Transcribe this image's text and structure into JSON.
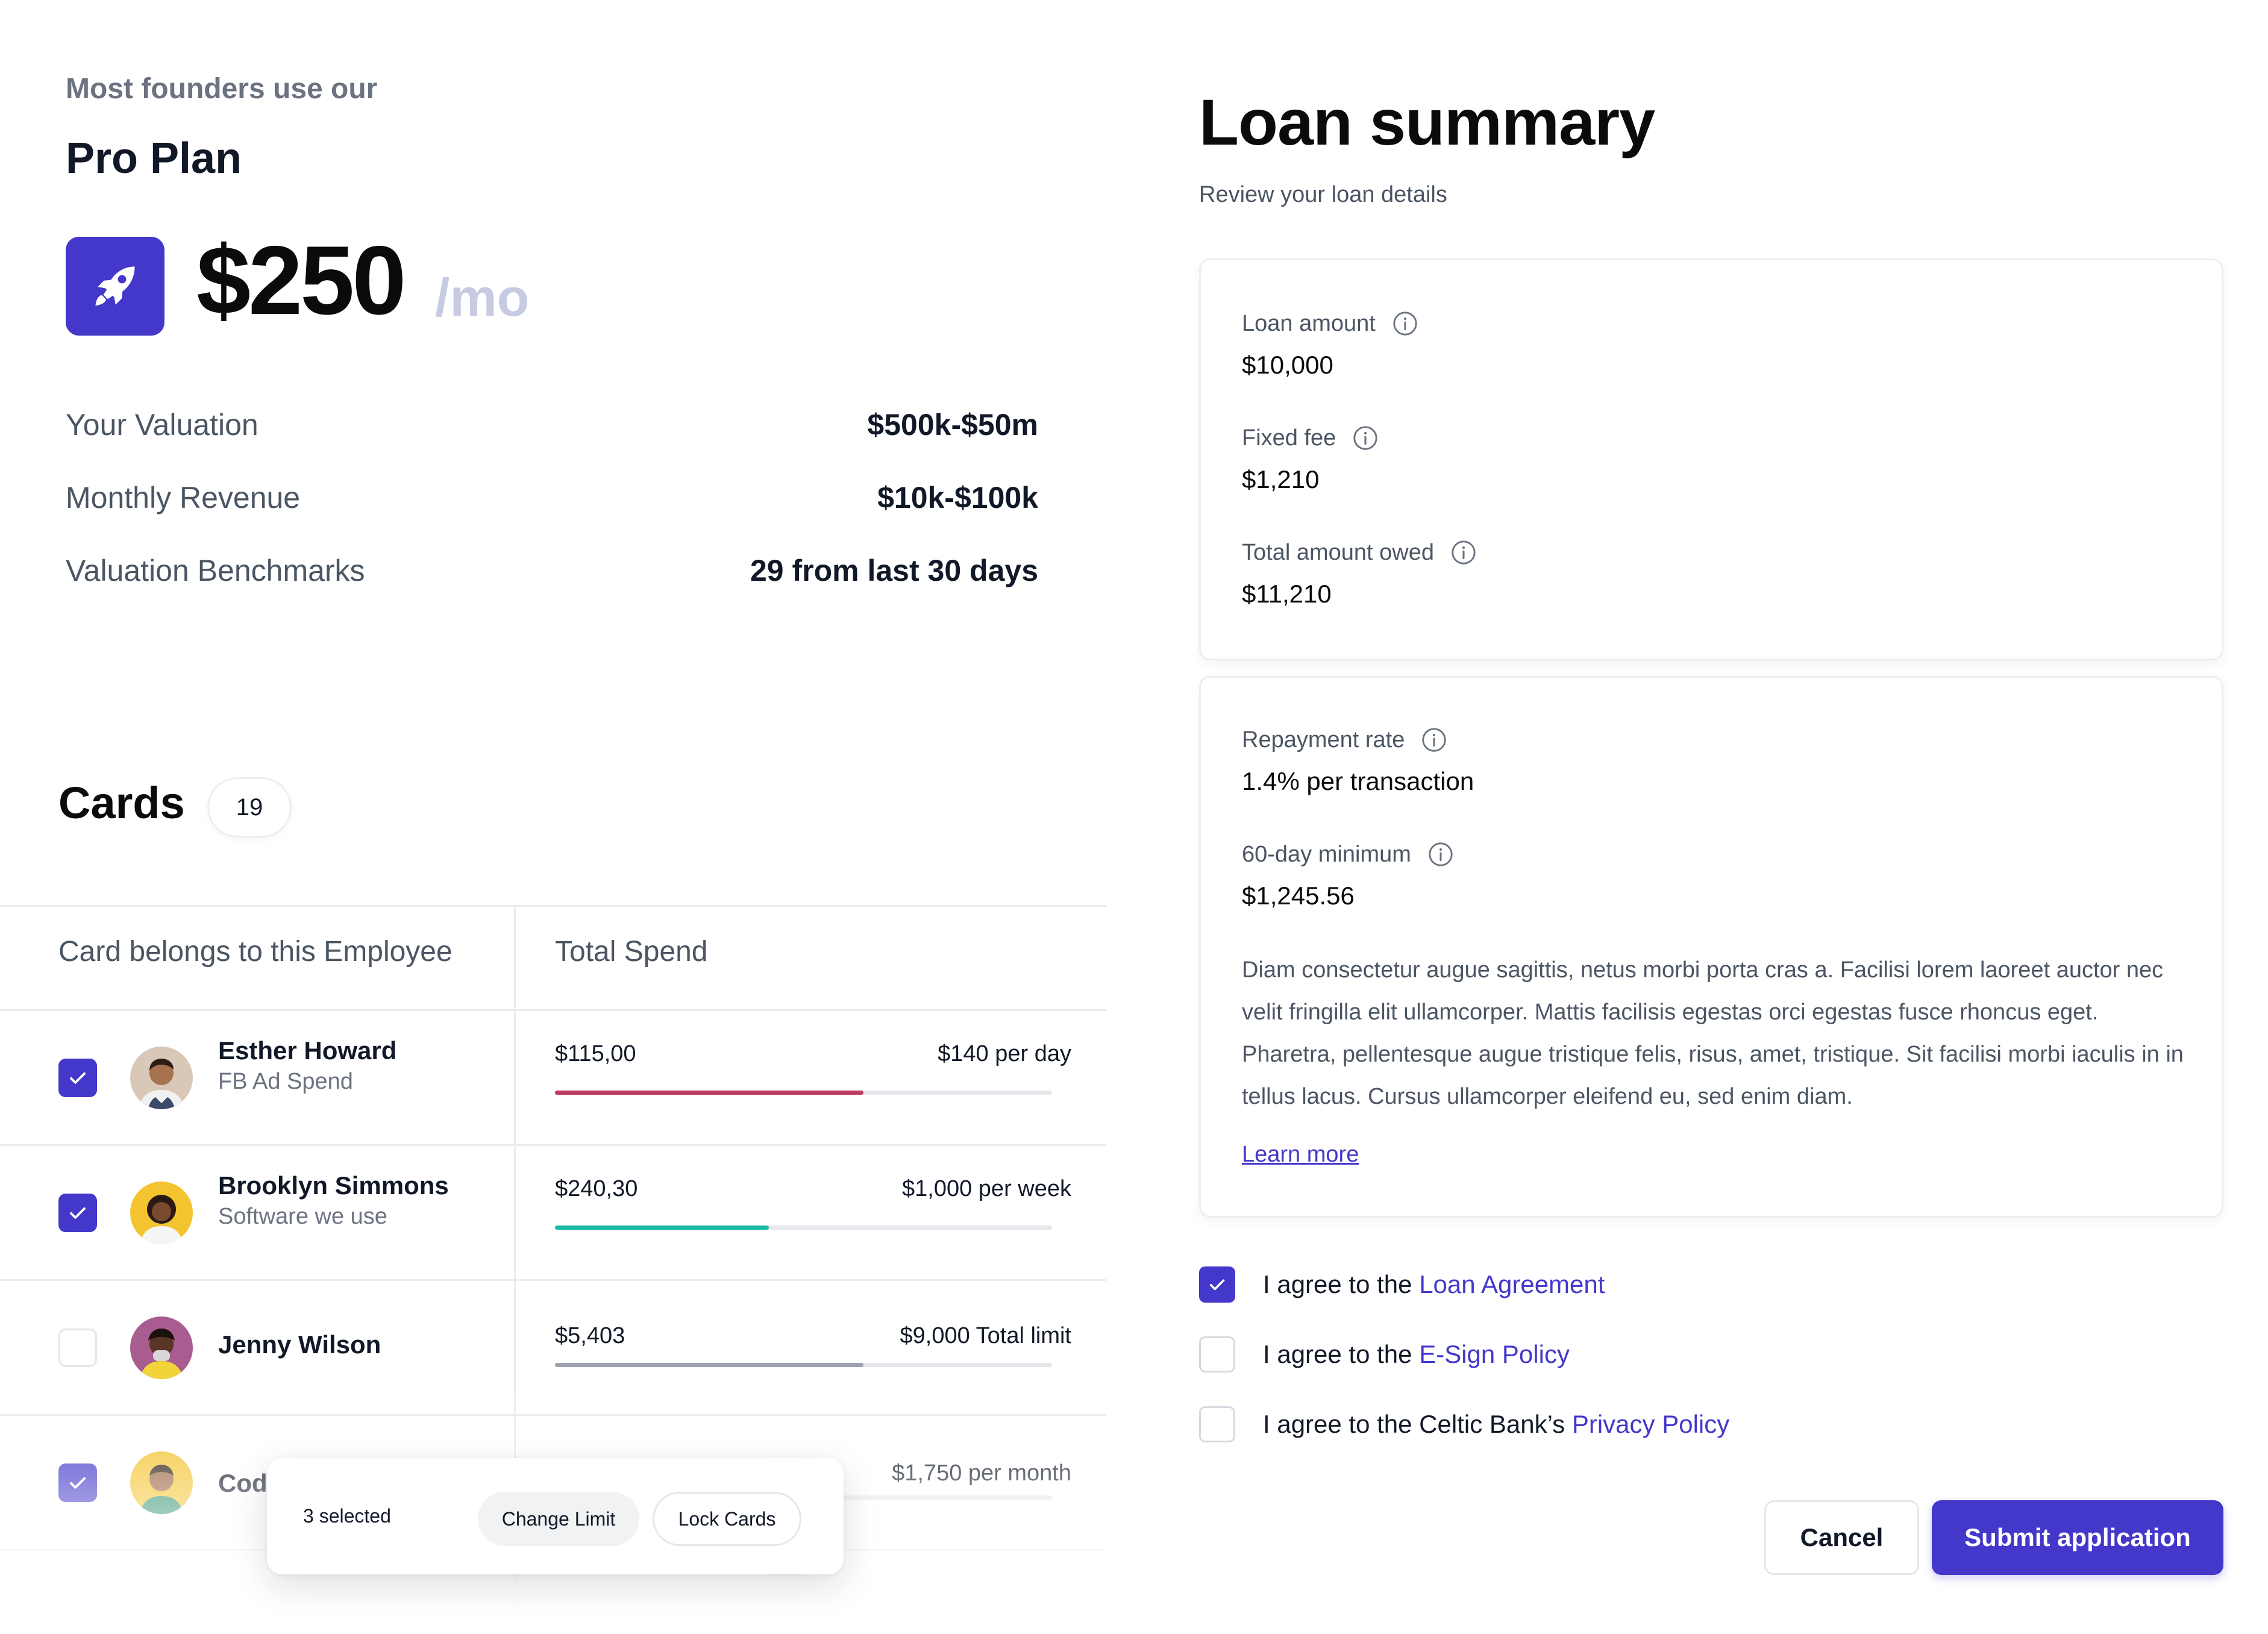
{
  "plan": {
    "eyebrow": "Most founders use our",
    "title": "Pro Plan",
    "icon": "rocket-icon",
    "price": "$250",
    "price_unit": "/mo",
    "stats": [
      {
        "label": "Your Valuation",
        "value": "$500k-$50m"
      },
      {
        "label": "Monthly Revenue",
        "value": "$10k-$100k"
      },
      {
        "label": "Valuation Benchmarks",
        "value": "29 from last 30 days"
      }
    ]
  },
  "cards": {
    "title": "Cards",
    "count": "19",
    "columns": [
      "Card belongs to this Employee",
      "Total Spend"
    ],
    "rows": [
      {
        "checked": true,
        "name": "Esther Howard",
        "subtitle": "FB Ad Spend",
        "spend": "$115,00",
        "limit": "$140 per day",
        "progress": 0.62,
        "bar_color": "#be3a60"
      },
      {
        "checked": true,
        "name": "Brooklyn Simmons",
        "subtitle": "Software we use",
        "spend": "$240,30",
        "limit": "$1,000 per week",
        "progress": 0.43,
        "bar_color": "#17b8a6"
      },
      {
        "checked": false,
        "name": "Jenny Wilson",
        "subtitle": "",
        "spend": "$5,403",
        "limit": "$9,000 Total limit",
        "progress": 0.62,
        "bar_color": "#9ca3af"
      },
      {
        "checked": true,
        "name": "Cod",
        "subtitle": "",
        "spend": "",
        "limit": "$1,750 per month",
        "progress": 0.0,
        "bar_color": "#9ca3af"
      }
    ],
    "bulk": {
      "selected_text": "3 selected",
      "change_limit_label": "Change Limit",
      "lock_cards_label": "Lock Cards"
    }
  },
  "loan": {
    "title": "Loan summary",
    "subtitle": "Review your loan details",
    "fields_top": [
      {
        "label": "Loan amount",
        "value": "$10,000"
      },
      {
        "label": "Fixed fee",
        "value": "$1,210"
      },
      {
        "label": "Total amount owed",
        "value": "$11,210"
      }
    ],
    "fields_bottom": [
      {
        "label": "Repayment rate",
        "value": "1.4% per transaction"
      },
      {
        "label": "60-day minimum",
        "value": "$1,245.56"
      }
    ],
    "description": "Diam consectetur augue sagittis, netus morbi porta cras a. Facilisi lorem laoreet auctor nec velit fringilla elit ullamcorper. Mattis facilisis egestas orci egestas fusce rhoncus eget. Pharetra, pellentesque augue tristique felis, risus, amet, tristique. Sit facilisi morbi iaculis in in tellus lacus. Cursus ullamcorper eleifend eu, sed enim diam.",
    "learn_more": "Learn more",
    "agreements": [
      {
        "checked": true,
        "prefix": "I agree to the ",
        "link": "Loan Agreement"
      },
      {
        "checked": false,
        "prefix": "I agree to the ",
        "link": "E-Sign Policy"
      },
      {
        "checked": false,
        "prefix": "I agree to the Celtic Bank’s ",
        "link": "Privacy Policy"
      }
    ],
    "cancel_label": "Cancel",
    "submit_label": "Submit application"
  },
  "colors": {
    "accent": "#4338ca",
    "text": "#111827",
    "muted": "#4b5563"
  }
}
